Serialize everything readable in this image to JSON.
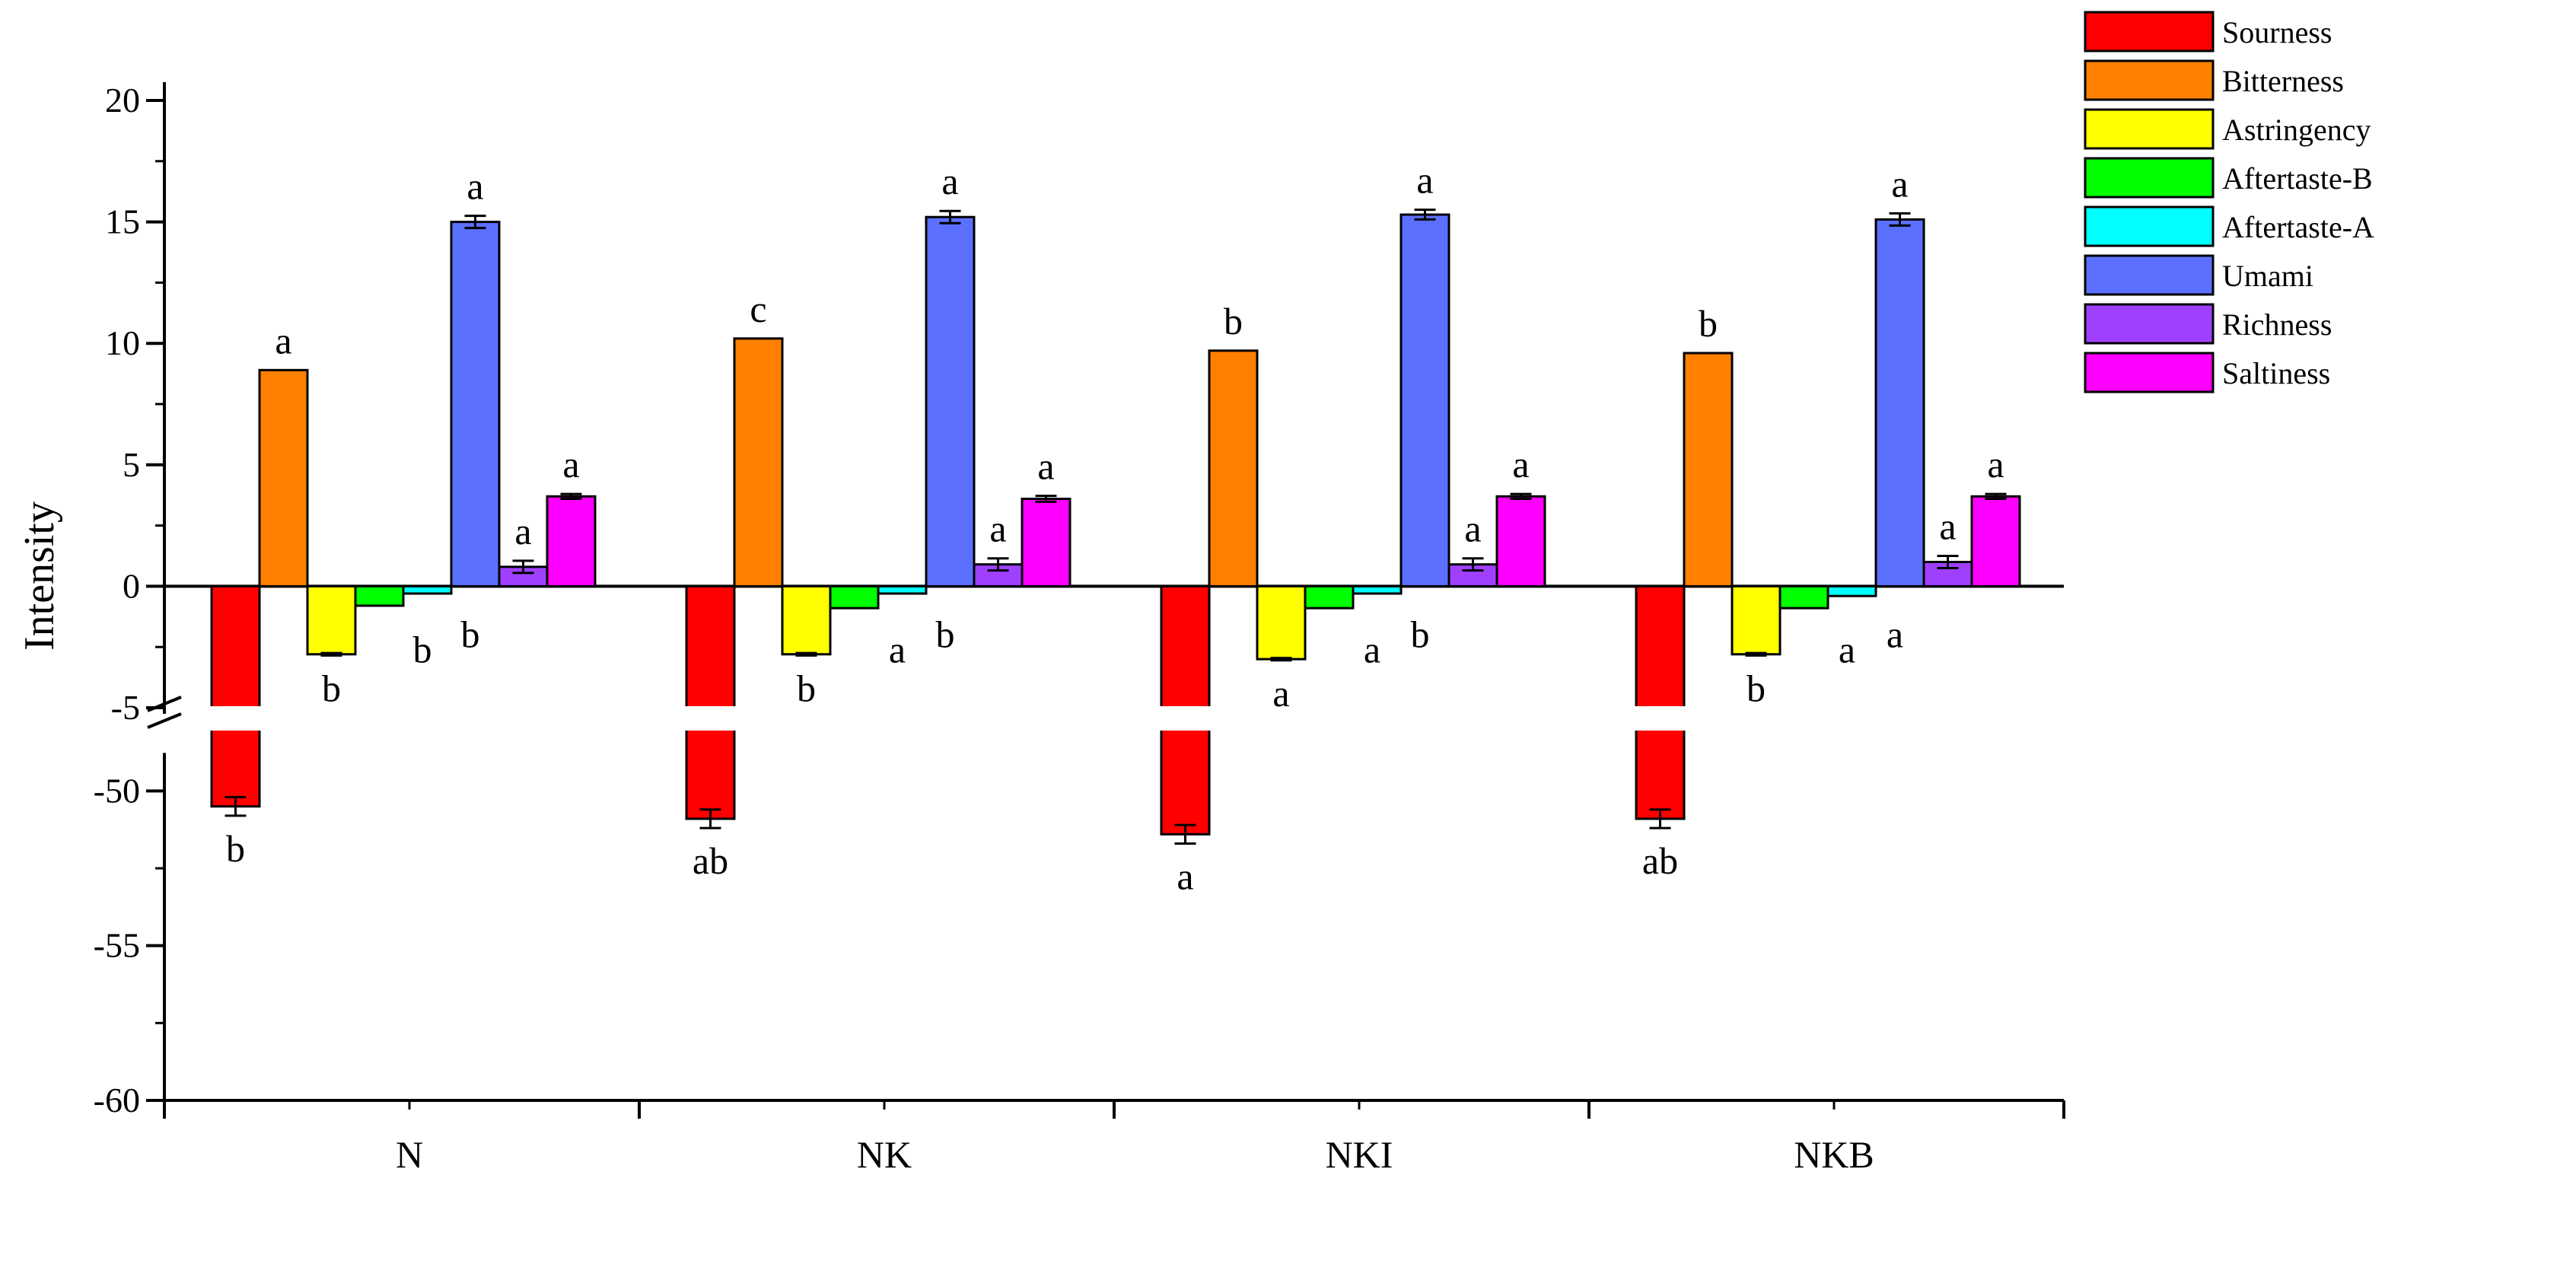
{
  "chart_data": {
    "type": "bar",
    "ylabel": "Intensity",
    "xlabel": "",
    "ylim": [
      -60,
      20
    ],
    "axis_break": [
      -48,
      -5
    ],
    "yticks": [
      "20",
      "15",
      "10",
      "5",
      "0",
      "-5",
      "-50",
      "-55",
      "-60"
    ],
    "categories": [
      "N",
      "NK",
      "NKI",
      "NKB"
    ],
    "legend_position": "top-right",
    "series": [
      {
        "name": "Sourness",
        "color": "#ff0000",
        "values": [
          -50.5,
          -50.9,
          -51.4,
          -50.9
        ],
        "errors": [
          0.3,
          0.3,
          0.3,
          0.3
        ],
        "labels": [
          "b",
          "ab",
          "a",
          "ab"
        ]
      },
      {
        "name": "Bitterness",
        "color": "#ff8000",
        "values": [
          8.9,
          10.2,
          9.7,
          9.6
        ],
        "errors": [
          0,
          0,
          0,
          0
        ],
        "labels": [
          "a",
          "c",
          "b",
          "b"
        ]
      },
      {
        "name": "Astringency",
        "color": "#ffff00",
        "values": [
          -2.8,
          -2.8,
          -3.0,
          -2.8
        ],
        "errors": [
          0.05,
          0.05,
          0.05,
          0.05
        ],
        "labels": [
          "b",
          "b",
          "a",
          "b"
        ]
      },
      {
        "name": "Aftertaste-B",
        "color": "#00ff00",
        "values": [
          -0.8,
          -0.9,
          -0.9,
          -0.9
        ],
        "errors": [
          0,
          0,
          0,
          0
        ],
        "labels": [
          "b",
          "a",
          "a",
          "a"
        ]
      },
      {
        "name": "Aftertaste-A",
        "color": "#00ffff",
        "values": [
          -0.3,
          -0.3,
          -0.3,
          -0.4
        ],
        "errors": [
          0,
          0,
          0,
          0
        ],
        "labels": [
          "b",
          "b",
          "b",
          "a"
        ]
      },
      {
        "name": "Umami",
        "color": "#5b70ff",
        "values": [
          15.0,
          15.2,
          15.3,
          15.1
        ],
        "errors": [
          0.25,
          0.25,
          0.2,
          0.25
        ],
        "labels": [
          "a",
          "a",
          "a",
          "a"
        ]
      },
      {
        "name": "Richness",
        "color": "#a040ff",
        "values": [
          0.8,
          0.9,
          0.9,
          1.0
        ],
        "errors": [
          0.25,
          0.25,
          0.25,
          0.25
        ],
        "labels": [
          "a",
          "a",
          "a",
          "a"
        ]
      },
      {
        "name": "Saltiness",
        "color": "#ff00ff",
        "values": [
          3.7,
          3.6,
          3.7,
          3.7
        ],
        "errors": [
          0.1,
          0.12,
          0.1,
          0.1
        ],
        "labels": [
          "a",
          "a",
          "a",
          "a"
        ]
      }
    ]
  }
}
